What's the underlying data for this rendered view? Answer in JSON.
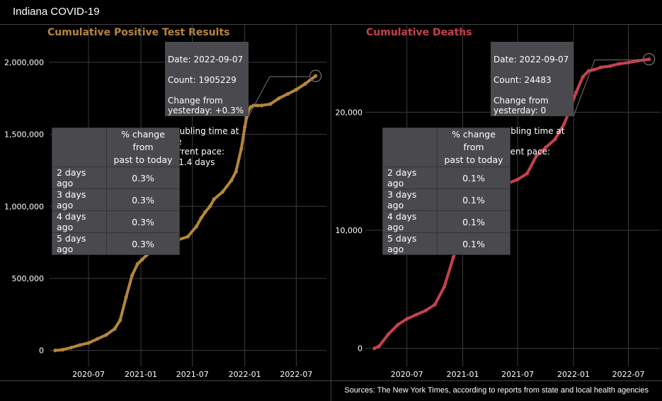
{
  "app": {
    "title": "Indiana COVID-19"
  },
  "footer": {
    "sources": "Sources: The New York Times, according to reports from state and local health agencies"
  },
  "colors": {
    "cases": "#b5863a",
    "deaths": "#c4424e",
    "tooltip_bg": "#4a4a4e",
    "grid": "#3c3c3c"
  },
  "cases": {
    "tooltip": {
      "date": "Date: 2022-09-07",
      "count": "Count: 1905229",
      "change": "Change from\nyesterday: +0.3%",
      "doubling": "Doubling time at the\ncurrent pace:\n231.4 days"
    },
    "table": {
      "header": "% change from\npast to today",
      "rows": [
        {
          "label": "2 days ago",
          "value": "0.3%"
        },
        {
          "label": "3 days ago",
          "value": "0.3%"
        },
        {
          "label": "4 days ago",
          "value": "0.3%"
        },
        {
          "label": "5 days ago",
          "value": "0.3%"
        }
      ]
    }
  },
  "deaths": {
    "tooltip": {
      "date": "Date: 2022-09-07",
      "count": "Count: 24483",
      "change": "Change from\nyesterday: 0",
      "doubling": "Doubling time at the\ncurrent pace:\nNA"
    },
    "table": {
      "header": "% change from\npast to today",
      "rows": [
        {
          "label": "2 days ago",
          "value": "0.1%"
        },
        {
          "label": "3 days ago",
          "value": "0.1%"
        },
        {
          "label": "4 days ago",
          "value": "0.1%"
        },
        {
          "label": "5 days ago",
          "value": "0.1%"
        }
      ]
    }
  },
  "chart_data": [
    {
      "type": "line",
      "title": "Cumulative Positive Test Results",
      "xlabel": "",
      "ylabel": "",
      "x_ticks": [
        "2020-07",
        "2021-01",
        "2021-07",
        "2022-01",
        "2022-07"
      ],
      "y_ticks": [
        "0",
        "500,000",
        "1,000,000",
        "1,500,000",
        "2,000,000"
      ],
      "y_tick_values": [
        0,
        500000,
        1000000,
        1500000,
        2000000
      ],
      "xlim": [
        "2020-02-15",
        "2022-10-15"
      ],
      "ylim": [
        -100000,
        2260000
      ],
      "grid": true,
      "series": [
        {
          "x": [
            "2020-03-06",
            "2020-04-01",
            "2020-05-01",
            "2020-06-01",
            "2020-07-01",
            "2020-08-01",
            "2020-09-01",
            "2020-10-01",
            "2020-10-20",
            "2020-11-10",
            "2020-12-01",
            "2020-12-20",
            "2021-01-05",
            "2021-01-20",
            "2021-02-15",
            "2021-03-15",
            "2021-04-15",
            "2021-05-15",
            "2021-06-15",
            "2021-07-15",
            "2021-08-01",
            "2021-08-15",
            "2021-09-01",
            "2021-09-15",
            "2021-10-15",
            "2021-11-15",
            "2021-12-01",
            "2021-12-20",
            "2022-01-01",
            "2022-01-08",
            "2022-01-15",
            "2022-01-22",
            "2022-02-01",
            "2022-02-15",
            "2022-03-01",
            "2022-04-01",
            "2022-05-01",
            "2022-06-01",
            "2022-07-01",
            "2022-08-01",
            "2022-09-07"
          ],
          "y": [
            0,
            5000,
            20000,
            38000,
            52000,
            80000,
            108000,
            150000,
            210000,
            370000,
            520000,
            600000,
            630000,
            660000,
            690000,
            730000,
            760000,
            770000,
            790000,
            860000,
            920000,
            960000,
            1000000,
            1050000,
            1100000,
            1180000,
            1240000,
            1400000,
            1550000,
            1620000,
            1670000,
            1690000,
            1700000,
            1700000,
            1700000,
            1710000,
            1750000,
            1780000,
            1810000,
            1850000,
            1905229
          ]
        }
      ]
    },
    {
      "type": "line",
      "title": "Cumulative Deaths",
      "xlabel": "",
      "ylabel": "",
      "x_ticks": [
        "2020-07",
        "2021-01",
        "2021-07",
        "2022-01",
        "2022-07"
      ],
      "y_ticks": [
        "0",
        "10,000",
        "20,000"
      ],
      "y_tick_values": [
        0,
        10000,
        20000
      ],
      "xlim": [
        "2020-02-15",
        "2022-10-15"
      ],
      "ylim": [
        -1400,
        27400
      ],
      "grid": true,
      "series": [
        {
          "x": [
            "2020-03-16",
            "2020-04-01",
            "2020-05-01",
            "2020-06-01",
            "2020-07-01",
            "2020-08-01",
            "2020-09-01",
            "2020-10-01",
            "2020-11-01",
            "2020-12-01",
            "2021-01-01",
            "2021-01-10",
            "2021-01-20",
            "2021-02-01",
            "2021-03-01",
            "2021-04-01",
            "2021-05-01",
            "2021-06-01",
            "2021-07-01",
            "2021-08-01",
            "2021-09-01",
            "2021-10-01",
            "2021-11-01",
            "2021-12-01",
            "2021-12-20",
            "2022-01-10",
            "2022-02-01",
            "2022-02-20",
            "2022-03-10",
            "2022-04-01",
            "2022-05-01",
            "2022-06-01",
            "2022-07-01",
            "2022-08-01",
            "2022-09-07"
          ],
          "y": [
            0,
            200,
            1200,
            2000,
            2500,
            2850,
            3200,
            3700,
            5200,
            7700,
            9600,
            10100,
            11900,
            12600,
            13000,
            13300,
            13700,
            14000,
            14300,
            14800,
            16300,
            17000,
            17700,
            19000,
            20200,
            21700,
            23000,
            23500,
            23600,
            23800,
            23900,
            24100,
            24200,
            24350,
            24483
          ]
        }
      ]
    }
  ]
}
